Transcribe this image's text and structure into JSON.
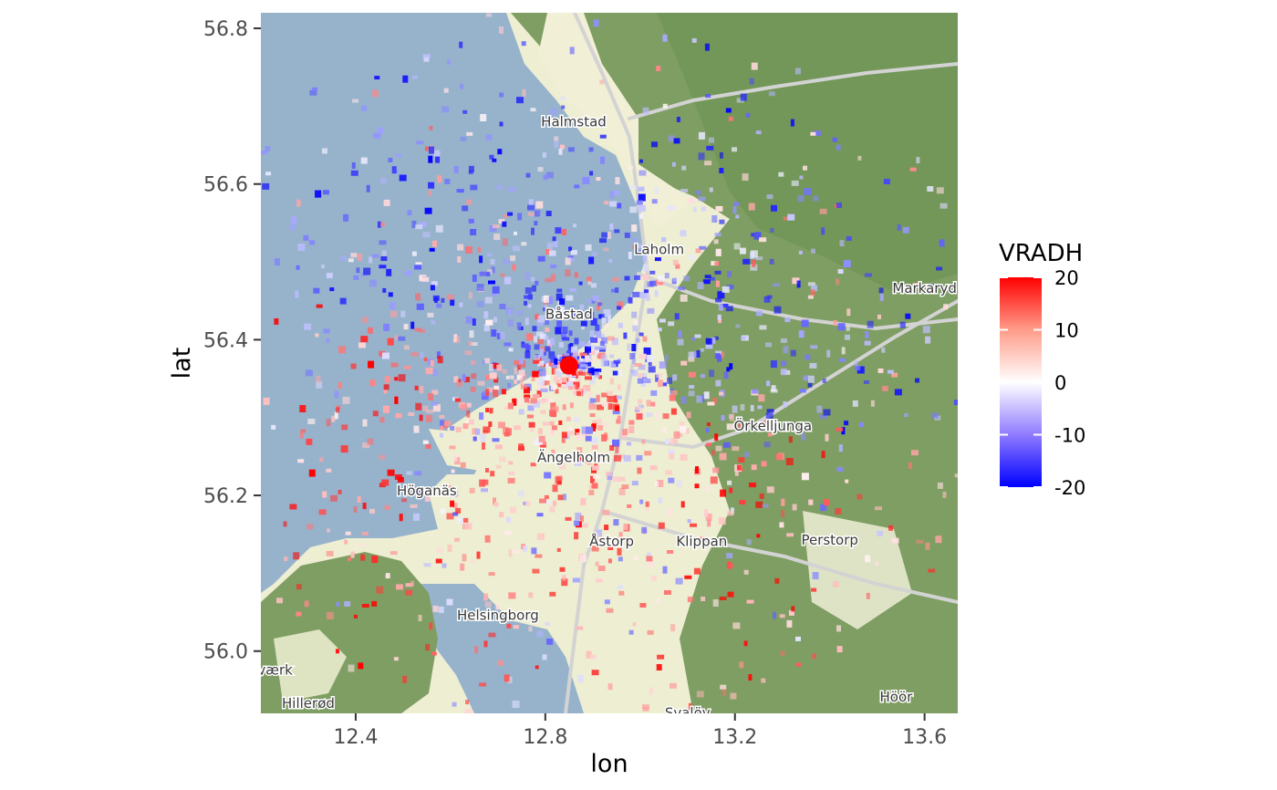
{
  "chart_data": {
    "type": "heatmap",
    "title": "",
    "xlabel": "lon",
    "ylabel": "lat",
    "xlim": [
      12.2,
      13.67
    ],
    "ylim": [
      55.92,
      56.82
    ],
    "x_ticks": [
      {
        "value": 12.4,
        "label": "12.4"
      },
      {
        "value": 12.8,
        "label": "12.8"
      },
      {
        "value": 13.2,
        "label": "13.2"
      },
      {
        "value": 13.6,
        "label": "13.6"
      }
    ],
    "y_ticks": [
      {
        "value": 56.0,
        "label": "56.0"
      },
      {
        "value": 56.2,
        "label": "56.2"
      },
      {
        "value": 56.4,
        "label": "56.4"
      },
      {
        "value": 56.6,
        "label": "56.6"
      },
      {
        "value": 56.8,
        "label": "56.8"
      }
    ],
    "legend": {
      "title": "VRADH",
      "position": "right",
      "min": -20,
      "max": 20,
      "breaks": [
        {
          "value": 20,
          "label": "20"
        },
        {
          "value": 10,
          "label": "10"
        },
        {
          "value": 0,
          "label": "0"
        },
        {
          "value": -10,
          "label": "-10"
        },
        {
          "value": -20,
          "label": "-20"
        }
      ],
      "colors": {
        "low": "#0000ff",
        "mid": "#ffffff",
        "high": "#ff0000"
      }
    },
    "radar_site": {
      "lon": 12.85,
      "lat": 56.367,
      "color": "#ff0000"
    },
    "basemap_places": [
      {
        "name": "Halmstad",
        "lon": 12.86,
        "lat": 56.674
      },
      {
        "name": "Laholm",
        "lon": 13.04,
        "lat": 56.51
      },
      {
        "name": "Markaryd",
        "lon": 13.6,
        "lat": 56.46
      },
      {
        "name": "Båstad",
        "lon": 12.85,
        "lat": 56.427
      },
      {
        "name": "Örkelljunga",
        "lon": 13.28,
        "lat": 56.283
      },
      {
        "name": "Ängelholm",
        "lon": 12.86,
        "lat": 56.243
      },
      {
        "name": "Höganäs",
        "lon": 12.55,
        "lat": 56.2
      },
      {
        "name": "Åstorp",
        "lon": 12.94,
        "lat": 56.135
      },
      {
        "name": "Klippan",
        "lon": 13.13,
        "lat": 56.135
      },
      {
        "name": "Perstorp",
        "lon": 13.4,
        "lat": 56.137
      },
      {
        "name": "Helsingborg",
        "lon": 12.7,
        "lat": 56.04
      },
      {
        "name": "værk",
        "lon": 12.23,
        "lat": 55.97
      },
      {
        "name": "Hillerød",
        "lon": 12.3,
        "lat": 55.927
      },
      {
        "name": "Höör",
        "lon": 13.54,
        "lat": 55.935
      },
      {
        "name": "Svalöv",
        "lon": 13.1,
        "lat": 55.915
      }
    ],
    "colors": {
      "sea": "#97b3cc",
      "land_light": "#f1efd6",
      "forest": "#7f9e63",
      "forest_dark": "#6f9456",
      "farmland": "#eeeed2",
      "road": "#d7d7d7"
    }
  }
}
